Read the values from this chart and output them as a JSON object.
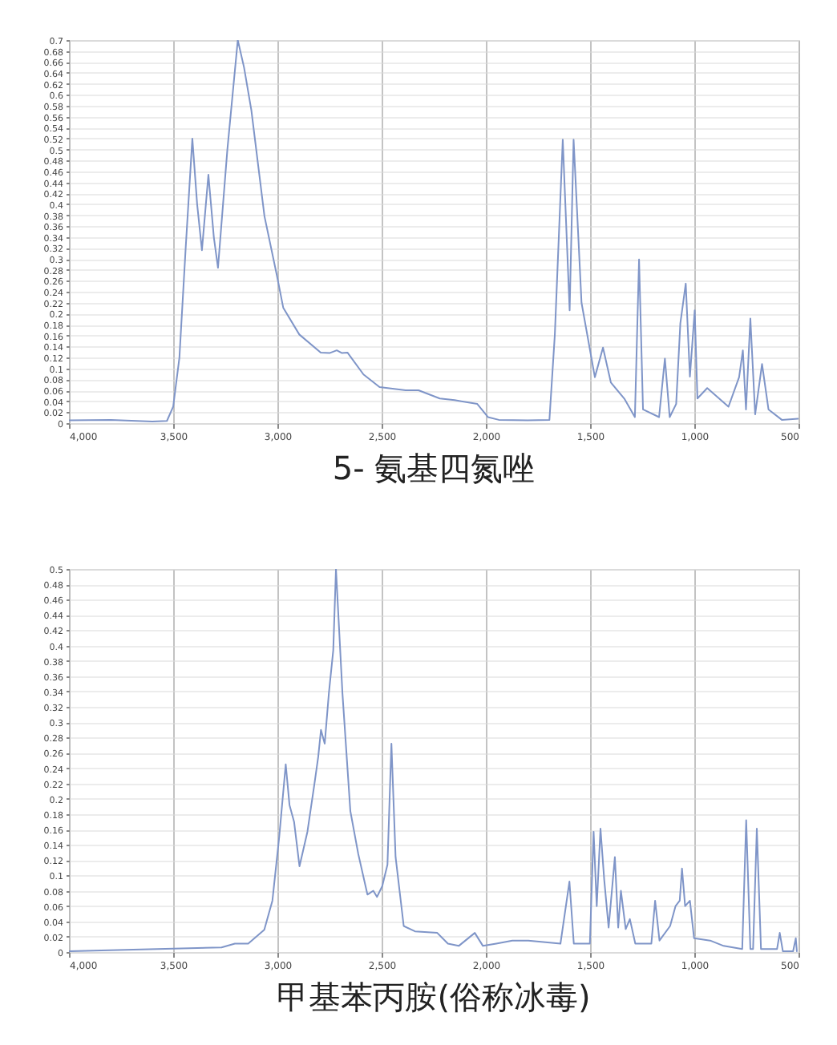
{
  "chart_data": [
    {
      "type": "line",
      "title": "5- 氨基四氮唑",
      "grid": true,
      "xlim": [
        4000,
        500
      ],
      "xticks": [
        {
          "value": 4000,
          "label": "4,000"
        },
        {
          "value": 3500,
          "label": "3,500"
        },
        {
          "value": 3000,
          "label": "3,000"
        },
        {
          "value": 2500,
          "label": "2,500"
        },
        {
          "value": 2000,
          "label": "2,000"
        },
        {
          "value": 1500,
          "label": "1,500"
        },
        {
          "value": 1000,
          "label": "1,000"
        },
        500
      ],
      "ylim": [
        0,
        0.7
      ],
      "yticks": [
        0,
        0.02,
        0.04,
        0.06,
        0.08,
        0.1,
        0.12,
        0.14,
        0.16,
        0.18,
        0.2,
        0.22,
        0.24,
        0.26,
        0.28,
        0.3,
        0.32,
        0.34,
        0.36,
        0.38,
        0.4,
        0.42,
        0.44,
        0.46,
        0.48,
        0.5,
        0.52,
        0.54,
        0.56,
        0.58,
        0.6,
        0.62,
        0.64,
        0.66,
        0.68,
        0.7
      ],
      "series": [
        {
          "color": "#7f95c8",
          "x": [
            4000,
            3800,
            3600,
            3530,
            3500,
            3470,
            3440,
            3408,
            3385,
            3362,
            3331,
            3305,
            3285,
            3240,
            3190,
            3160,
            3125,
            3062,
            3002,
            2972,
            2895,
            2792,
            2750,
            2715,
            2690,
            2664,
            2587,
            2510,
            2385,
            2323,
            2221,
            2150,
            2118,
            2041,
            1990,
            1938,
            1800,
            1695,
            1669,
            1631,
            1598,
            1579,
            1541,
            1477,
            1438,
            1400,
            1336,
            1285,
            1265,
            1246,
            1169,
            1141,
            1118,
            1087,
            1067,
            1041,
            1021,
            998,
            985,
            938,
            836,
            785,
            767,
            752,
            731,
            708,
            675,
            644,
            580,
            503
          ],
          "values": [
            0.005,
            0.006,
            0.003,
            0.004,
            0.03,
            0.12,
            0.32,
            0.52,
            0.4,
            0.316,
            0.454,
            0.34,
            0.284,
            0.5,
            0.7,
            0.65,
            0.572,
            0.378,
            0.269,
            0.211,
            0.162,
            0.129,
            0.128,
            0.133,
            0.128,
            0.129,
            0.089,
            0.066,
            0.06,
            0.06,
            0.045,
            0.042,
            0.04,
            0.035,
            0.011,
            0.006,
            0.005,
            0.006,
            0.162,
            0.518,
            0.206,
            0.518,
            0.22,
            0.084,
            0.138,
            0.074,
            0.045,
            0.011,
            0.299,
            0.025,
            0.011,
            0.118,
            0.011,
            0.035,
            0.182,
            0.255,
            0.085,
            0.206,
            0.045,
            0.064,
            0.03,
            0.084,
            0.133,
            0.025,
            0.191,
            0.016,
            0.108,
            0.025,
            0.006,
            0.008
          ]
        }
      ]
    },
    {
      "type": "line",
      "title": "甲基苯丙胺(俗称冰毒)",
      "grid": true,
      "xlim": [
        4000,
        500
      ],
      "xticks": [
        {
          "value": 4000,
          "label": "4,000"
        },
        {
          "value": 3500,
          "label": "3,500"
        },
        {
          "value": 3000,
          "label": "3,000"
        },
        {
          "value": 2500,
          "label": "2,500"
        },
        {
          "value": 2000,
          "label": "2,000"
        },
        {
          "value": 1500,
          "label": "1,500"
        },
        {
          "value": 1000,
          "label": "1,000"
        },
        500
      ],
      "ylim": [
        0,
        0.5
      ],
      "yticks": [
        0,
        0.02,
        0.04,
        0.06,
        0.08,
        0.1,
        0.12,
        0.14,
        0.16,
        0.18,
        0.2,
        0.22,
        0.24,
        0.26,
        0.28,
        0.3,
        0.32,
        0.34,
        0.36,
        0.38,
        0.4,
        0.42,
        0.44,
        0.46,
        0.48,
        0.5
      ],
      "series": [
        {
          "color": "#7f95c8",
          "x": [
            4000,
            3576,
            3268,
            3204,
            3140,
            3063,
            3024,
            2991,
            2960,
            2942,
            2920,
            2894,
            2856,
            2822,
            2804,
            2791,
            2773,
            2753,
            2732,
            2719,
            2688,
            2650,
            2612,
            2568,
            2540,
            2522,
            2497,
            2472,
            2453,
            2433,
            2394,
            2340,
            2233,
            2182,
            2130,
            2053,
            2014,
            1950,
            1873,
            1796,
            1642,
            1599,
            1578,
            1501,
            1483,
            1468,
            1450,
            1432,
            1411,
            1381,
            1365,
            1352,
            1329,
            1309,
            1283,
            1206,
            1188,
            1167,
            1116,
            1090,
            1070,
            1059,
            1044,
            1021,
            1001,
            924,
            859,
            770,
            751,
            731,
            718,
            700,
            680,
            603,
            590,
            575,
            526,
            513,
            508
          ],
          "values": [
            0.001,
            0.004,
            0.006,
            0.011,
            0.011,
            0.029,
            0.067,
            0.151,
            0.245,
            0.192,
            0.17,
            0.112,
            0.157,
            0.22,
            0.255,
            0.29,
            0.272,
            0.338,
            0.394,
            0.5,
            0.338,
            0.184,
            0.128,
            0.075,
            0.08,
            0.072,
            0.086,
            0.114,
            0.272,
            0.124,
            0.034,
            0.027,
            0.025,
            0.011,
            0.008,
            0.025,
            0.008,
            0.011,
            0.015,
            0.015,
            0.011,
            0.092,
            0.011,
            0.011,
            0.157,
            0.06,
            0.161,
            0.094,
            0.032,
            0.124,
            0.032,
            0.08,
            0.03,
            0.043,
            0.011,
            0.011,
            0.067,
            0.015,
            0.034,
            0.06,
            0.067,
            0.109,
            0.06,
            0.067,
            0.018,
            0.015,
            0.008,
            0.004,
            0.172,
            0.004,
            0.004,
            0.161,
            0.004,
            0.004,
            0.025,
            0.001,
            0.001,
            0.018,
            0.001
          ]
        }
      ]
    }
  ]
}
